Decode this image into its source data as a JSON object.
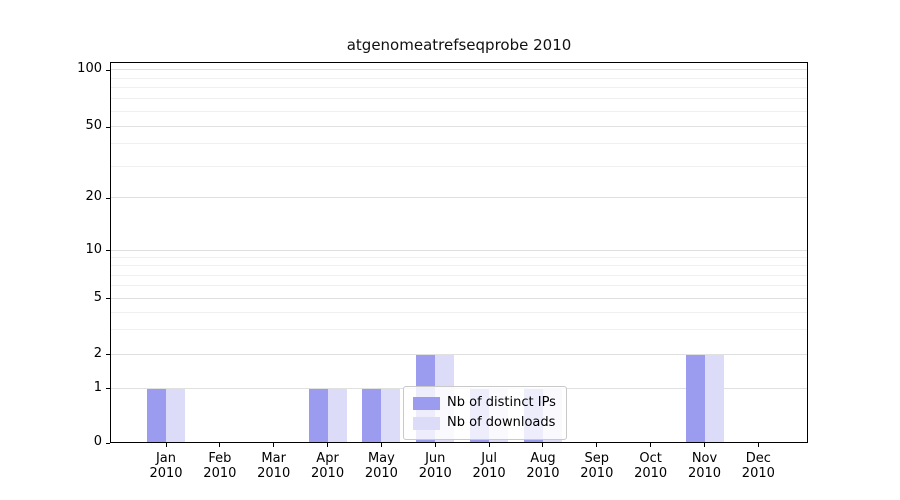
{
  "chart_data": {
    "type": "bar",
    "title": "atgenomeatrefseqprobe 2010",
    "categories": [
      "Jan 2010",
      "Feb 2010",
      "Mar 2010",
      "Apr 2010",
      "May 2010",
      "Jun 2010",
      "Jul 2010",
      "Aug 2010",
      "Sep 2010",
      "Oct 2010",
      "Nov 2010",
      "Dec 2010"
    ],
    "series": [
      {
        "name": "Nb of distinct IPs",
        "color": "#9b9bef",
        "values": [
          1,
          0,
          0,
          1,
          1,
          2,
          1,
          1,
          0,
          0,
          2,
          0
        ]
      },
      {
        "name": "Nb of downloads",
        "color": "#dcdcf8",
        "values": [
          1,
          0,
          0,
          1,
          1,
          2,
          1,
          1,
          0,
          0,
          2,
          0
        ]
      }
    ],
    "yticks": [
      0,
      1,
      2,
      5,
      10,
      20,
      50,
      100
    ],
    "minor_gridlines": [
      3,
      4,
      6,
      7,
      8,
      9,
      30,
      40,
      60,
      70,
      80,
      90
    ],
    "scale": "symlog",
    "ylim": [
      0,
      110
    ],
    "grid": true,
    "legend_position": "lower center",
    "colors": {
      "major_grid": "#e0e0e0",
      "minor_grid": "#efefef",
      "axis": "#000000",
      "legend_border": "#c9c9c9"
    }
  }
}
